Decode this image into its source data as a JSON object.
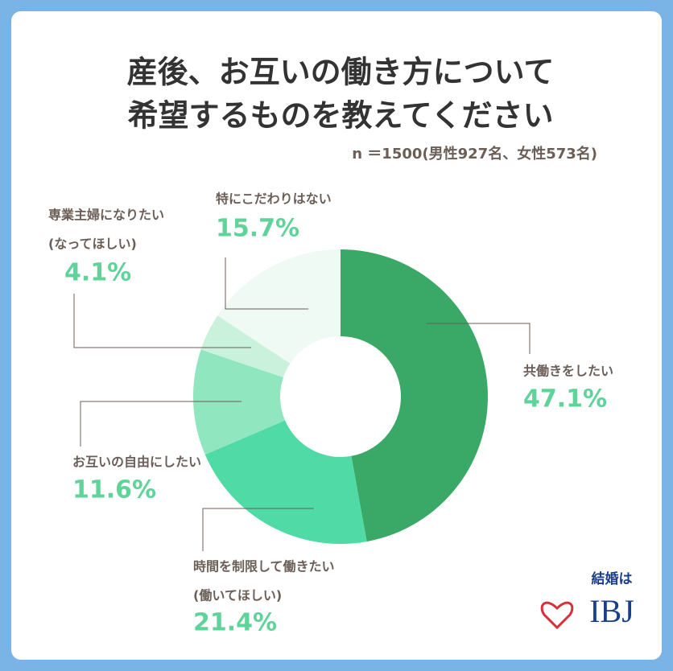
{
  "chart_data": {
    "type": "donut",
    "title": [
      "産後、お互いの働き方について",
      "希望するものを教えてください"
    ],
    "subtitle": "n ＝1500(男性927名、女性573名)",
    "categories": [
      [
        "共働きをしたい"
      ],
      [
        "時間を制限して働きたい",
        "(働いてほしい)"
      ],
      [
        "お互いの自由にしたい"
      ],
      [
        "専業主婦になりたい",
        "(なってほしい)"
      ],
      [
        "特にこだわりはない"
      ]
    ],
    "values": [
      47.1,
      21.4,
      11.6,
      4.1,
      15.7
    ],
    "value_labels": [
      "47.1%",
      "21.4%",
      "11.6%",
      "4.1%",
      "15.7%"
    ],
    "colors": [
      "#3aa866",
      "#4fdaa6",
      "#8fe6bf",
      "#c9f1dc",
      "#eefaf3"
    ]
  },
  "brand": {
    "tagline": "結婚は",
    "name": "IBJ"
  }
}
